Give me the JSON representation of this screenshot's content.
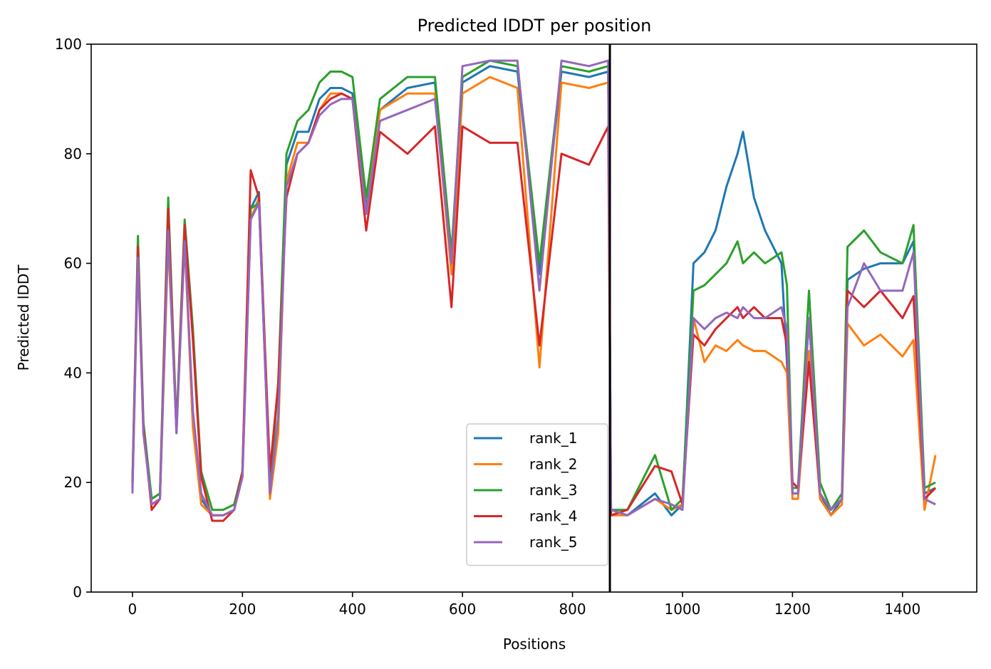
{
  "chart_data": {
    "type": "line",
    "title": "Predicted lDDT per position",
    "xlabel": "Positions",
    "ylabel": "Predicted lDDT",
    "xlim": [
      -75,
      1535
    ],
    "ylim": [
      0,
      100
    ],
    "xticks": [
      0,
      200,
      400,
      600,
      800,
      1000,
      1200,
      1400
    ],
    "yticks": [
      0,
      20,
      40,
      60,
      80,
      100
    ],
    "legend_position": "lower center",
    "vline": {
      "x": 868,
      "color": "#000000"
    },
    "series": [
      {
        "name": "rank_1",
        "color": "#1f77b4",
        "x": [
          0,
          10,
          20,
          35,
          50,
          65,
          80,
          95,
          110,
          125,
          145,
          165,
          185,
          200,
          215,
          230,
          250,
          265,
          280,
          300,
          320,
          340,
          360,
          380,
          400,
          425,
          450,
          500,
          550,
          580,
          600,
          650,
          700,
          740,
          780,
          830,
          865,
          870,
          900,
          950,
          980,
          1000,
          1020,
          1040,
          1060,
          1080,
          1100,
          1110,
          1130,
          1150,
          1180,
          1190,
          1200,
          1210,
          1230,
          1250,
          1270,
          1290,
          1300,
          1330,
          1360,
          1400,
          1420,
          1440,
          1460
        ],
        "y": [
          20,
          63,
          30,
          17,
          18,
          66,
          30,
          66,
          30,
          17,
          14,
          14,
          15,
          22,
          70,
          73,
          18,
          30,
          78,
          84,
          84,
          90,
          92,
          92,
          91,
          70,
          88,
          92,
          93,
          60,
          93,
          96,
          95,
          58,
          95,
          94,
          95,
          15,
          14,
          18,
          14,
          16,
          60,
          62,
          66,
          74,
          80,
          84,
          72,
          66,
          60,
          42,
          18,
          18,
          50,
          18,
          14,
          17,
          57,
          59,
          60,
          60,
          64,
          18,
          19
        ]
      },
      {
        "name": "rank_2",
        "color": "#ff7f0e",
        "x": [
          0,
          10,
          20,
          35,
          50,
          65,
          80,
          95,
          110,
          125,
          145,
          165,
          185,
          200,
          215,
          230,
          250,
          265,
          280,
          300,
          320,
          340,
          360,
          380,
          400,
          425,
          450,
          500,
          550,
          580,
          600,
          650,
          700,
          740,
          780,
          830,
          865,
          870,
          900,
          950,
          980,
          1000,
          1020,
          1040,
          1060,
          1080,
          1100,
          1110,
          1130,
          1150,
          1180,
          1190,
          1200,
          1210,
          1230,
          1250,
          1270,
          1290,
          1300,
          1330,
          1360,
          1400,
          1420,
          1440,
          1460
        ],
        "y": [
          19,
          62,
          29,
          16,
          17,
          64,
          30,
          64,
          30,
          16,
          14,
          14,
          15,
          21,
          68,
          72,
          17,
          29,
          75,
          82,
          82,
          88,
          91,
          91,
          90,
          69,
          88,
          91,
          91,
          58,
          91,
          94,
          92,
          41,
          93,
          92,
          93,
          14,
          14,
          17,
          15,
          16,
          50,
          42,
          45,
          44,
          46,
          45,
          44,
          44,
          42,
          40,
          17,
          17,
          44,
          17,
          14,
          16,
          49,
          45,
          47,
          43,
          46,
          15,
          25
        ]
      },
      {
        "name": "rank_3",
        "color": "#2ca02c",
        "x": [
          0,
          10,
          20,
          35,
          50,
          65,
          80,
          95,
          110,
          125,
          145,
          165,
          185,
          200,
          215,
          230,
          250,
          265,
          280,
          300,
          320,
          340,
          360,
          380,
          400,
          425,
          450,
          500,
          550,
          580,
          600,
          650,
          700,
          740,
          780,
          830,
          865,
          870,
          900,
          950,
          980,
          1000,
          1020,
          1040,
          1060,
          1080,
          1100,
          1110,
          1130,
          1150,
          1180,
          1190,
          1200,
          1210,
          1230,
          1250,
          1270,
          1290,
          1300,
          1330,
          1360,
          1400,
          1420,
          1440,
          1460
        ],
        "y": [
          20,
          65,
          31,
          17,
          18,
          72,
          30,
          68,
          48,
          22,
          15,
          15,
          16,
          22,
          70,
          71,
          19,
          38,
          80,
          86,
          88,
          93,
          95,
          95,
          94,
          72,
          90,
          94,
          94,
          62,
          94,
          97,
          96,
          60,
          96,
          95,
          96,
          15,
          15,
          25,
          15,
          17,
          55,
          56,
          58,
          60,
          64,
          60,
          62,
          60,
          62,
          56,
          19,
          19,
          55,
          20,
          15,
          18,
          63,
          66,
          62,
          60,
          67,
          19,
          20
        ]
      },
      {
        "name": "rank_4",
        "color": "#d62728",
        "x": [
          0,
          10,
          20,
          35,
          50,
          65,
          80,
          95,
          110,
          125,
          145,
          165,
          185,
          200,
          215,
          230,
          250,
          265,
          280,
          300,
          320,
          340,
          360,
          380,
          400,
          425,
          450,
          500,
          550,
          580,
          600,
          650,
          700,
          740,
          780,
          830,
          865,
          870,
          900,
          950,
          980,
          1000,
          1020,
          1040,
          1060,
          1080,
          1100,
          1110,
          1130,
          1150,
          1180,
          1190,
          1200,
          1210,
          1230,
          1250,
          1270,
          1290,
          1300,
          1330,
          1360,
          1400,
          1420,
          1440,
          1460
        ],
        "y": [
          19,
          63,
          30,
          15,
          17,
          70,
          29,
          67,
          46,
          21,
          13,
          13,
          15,
          22,
          77,
          72,
          22,
          38,
          72,
          80,
          82,
          88,
          90,
          91,
          90,
          66,
          84,
          80,
          85,
          52,
          85,
          82,
          82,
          45,
          80,
          78,
          85,
          14,
          15,
          23,
          22,
          16,
          47,
          45,
          48,
          50,
          52,
          50,
          52,
          50,
          50,
          45,
          20,
          19,
          42,
          18,
          15,
          17,
          55,
          52,
          55,
          50,
          54,
          17,
          19
        ]
      },
      {
        "name": "rank_5",
        "color": "#9467bd",
        "x": [
          0,
          10,
          20,
          35,
          50,
          65,
          80,
          95,
          110,
          125,
          145,
          165,
          185,
          200,
          215,
          230,
          250,
          265,
          280,
          300,
          320,
          340,
          360,
          380,
          400,
          425,
          450,
          500,
          550,
          580,
          600,
          650,
          700,
          740,
          780,
          830,
          865,
          870,
          900,
          950,
          980,
          1000,
          1020,
          1040,
          1060,
          1080,
          1100,
          1110,
          1130,
          1150,
          1180,
          1190,
          1200,
          1210,
          1230,
          1250,
          1270,
          1290,
          1300,
          1330,
          1360,
          1400,
          1420,
          1440,
          1460
        ],
        "y": [
          18,
          61,
          29,
          16,
          17,
          66,
          29,
          64,
          33,
          18,
          14,
          14,
          15,
          21,
          68,
          71,
          18,
          32,
          74,
          80,
          82,
          87,
          89,
          90,
          90,
          69,
          86,
          88,
          90,
          60,
          96,
          97,
          97,
          55,
          97,
          96,
          97,
          15,
          14,
          17,
          16,
          15,
          50,
          48,
          50,
          51,
          50,
          52,
          50,
          50,
          52,
          48,
          18,
          18,
          50,
          18,
          15,
          17,
          52,
          60,
          55,
          55,
          62,
          17,
          16
        ]
      }
    ]
  }
}
